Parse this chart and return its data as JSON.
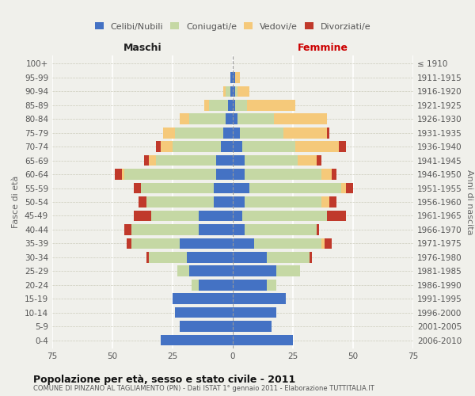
{
  "age_groups": [
    "0-4",
    "5-9",
    "10-14",
    "15-19",
    "20-24",
    "25-29",
    "30-34",
    "35-39",
    "40-44",
    "45-49",
    "50-54",
    "55-59",
    "60-64",
    "65-69",
    "70-74",
    "75-79",
    "80-84",
    "85-89",
    "90-94",
    "95-99",
    "100+"
  ],
  "birth_years": [
    "2006-2010",
    "2001-2005",
    "1996-2000",
    "1991-1995",
    "1986-1990",
    "1981-1985",
    "1976-1980",
    "1971-1975",
    "1966-1970",
    "1961-1965",
    "1956-1960",
    "1951-1955",
    "1946-1950",
    "1941-1945",
    "1936-1940",
    "1931-1935",
    "1926-1930",
    "1921-1925",
    "1916-1920",
    "1911-1915",
    "≤ 1910"
  ],
  "maschi": {
    "celibe": [
      30,
      22,
      24,
      25,
      14,
      18,
      19,
      22,
      14,
      14,
      8,
      8,
      7,
      7,
      5,
      4,
      3,
      2,
      1,
      1,
      0
    ],
    "coniugato": [
      0,
      0,
      0,
      0,
      3,
      5,
      16,
      20,
      28,
      20,
      28,
      30,
      38,
      25,
      20,
      20,
      15,
      8,
      2,
      0,
      0
    ],
    "vedovo": [
      0,
      0,
      0,
      0,
      0,
      0,
      0,
      0,
      0,
      0,
      0,
      0,
      1,
      3,
      5,
      5,
      4,
      2,
      1,
      0,
      0
    ],
    "divorziato": [
      0,
      0,
      0,
      0,
      0,
      0,
      1,
      2,
      3,
      7,
      3,
      3,
      3,
      2,
      2,
      0,
      0,
      0,
      0,
      0,
      0
    ]
  },
  "femmine": {
    "nubile": [
      25,
      16,
      18,
      22,
      14,
      18,
      14,
      9,
      5,
      4,
      5,
      7,
      5,
      5,
      4,
      3,
      2,
      1,
      1,
      1,
      0
    ],
    "coniugata": [
      0,
      0,
      0,
      0,
      4,
      10,
      18,
      28,
      30,
      35,
      32,
      38,
      32,
      22,
      22,
      18,
      15,
      5,
      1,
      0,
      0
    ],
    "vedova": [
      0,
      0,
      0,
      0,
      0,
      0,
      0,
      1,
      0,
      0,
      3,
      2,
      4,
      8,
      18,
      18,
      22,
      20,
      5,
      2,
      0
    ],
    "divorziata": [
      0,
      0,
      0,
      0,
      0,
      0,
      1,
      3,
      1,
      8,
      3,
      3,
      2,
      2,
      3,
      1,
      0,
      0,
      0,
      0,
      0
    ]
  },
  "colors": {
    "celibe": "#4472C4",
    "coniugato": "#c5d8a4",
    "vedovo": "#f5c97a",
    "divorziato": "#c0392b"
  },
  "title": "Popolazione per età, sesso e stato civile - 2011",
  "subtitle": "COMUNE DI PINZANO AL TAGLIAMENTO (PN) - Dati ISTAT 1° gennaio 2011 - Elaborazione TUTTITALIA.IT",
  "xlim": 75,
  "legend_labels": [
    "Celibi/Nubili",
    "Coniugati/e",
    "Vedovi/e",
    "Divorziati/e"
  ],
  "ylabel_left": "Fasce di età",
  "ylabel_right": "Anni di nascita",
  "xlabel_left": "Maschi",
  "xlabel_right": "Femmine",
  "bg_color": "#f0f0eb"
}
